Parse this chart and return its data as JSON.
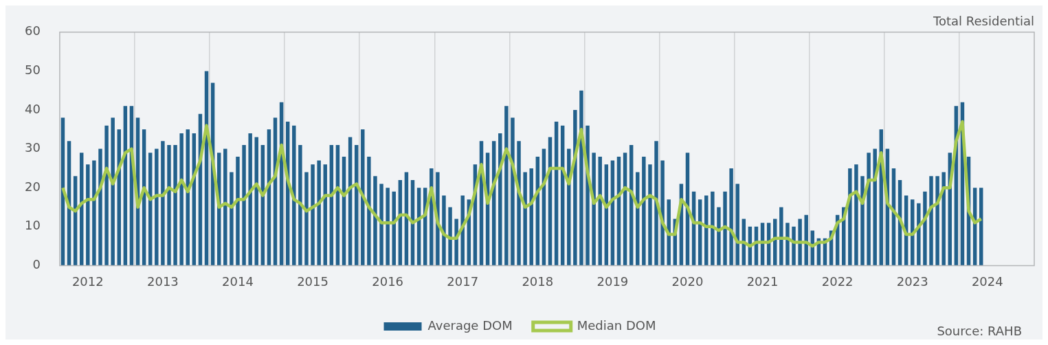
{
  "chart_data": {
    "type": "bar",
    "title": "Total Residential",
    "categories": [
      null,
      null,
      null,
      null,
      "2012",
      null,
      null,
      null,
      null,
      null,
      null,
      null,
      null,
      null,
      null,
      null,
      "2013",
      null,
      null,
      null,
      null,
      null,
      null,
      null,
      null,
      null,
      null,
      null,
      "2014",
      null,
      null,
      null,
      null,
      null,
      null,
      null,
      null,
      null,
      null,
      null,
      "2015",
      null,
      null,
      null,
      null,
      null,
      null,
      null,
      null,
      null,
      null,
      null,
      "2016",
      null,
      null,
      null,
      null,
      null,
      null,
      null,
      null,
      null,
      null,
      null,
      "2017",
      null,
      null,
      null,
      null,
      null,
      null,
      null,
      null,
      null,
      null,
      null,
      "2018",
      null,
      null,
      null,
      null,
      null,
      null,
      null,
      null,
      null,
      null,
      null,
      "2019",
      null,
      null,
      null,
      null,
      null,
      null,
      null,
      null,
      null,
      null,
      null,
      "2020",
      null,
      null,
      null,
      null,
      null,
      null,
      null,
      null,
      null,
      null,
      null,
      "2021",
      null,
      null,
      null,
      null,
      null,
      null,
      null,
      null,
      null,
      null,
      null,
      "2022",
      null,
      null,
      null,
      null,
      null,
      null,
      null,
      null,
      null,
      null,
      null,
      "2023",
      null,
      null,
      null,
      null,
      null,
      null,
      null,
      null,
      null,
      null,
      null,
      "2024",
      null,
      null,
      null,
      null,
      null,
      null,
      null
    ],
    "series": [
      {
        "name": "Average DOM",
        "color": "#23618c",
        "values": [
          38,
          32,
          23,
          29,
          26,
          27,
          30,
          36,
          38,
          35,
          41,
          41,
          38,
          35,
          29,
          30,
          32,
          31,
          31,
          34,
          35,
          34,
          39,
          50,
          47,
          29,
          30,
          24,
          28,
          31,
          34,
          33,
          31,
          35,
          38,
          42,
          37,
          36,
          31,
          24,
          26,
          27,
          26,
          31,
          31,
          28,
          33,
          31,
          35,
          28,
          23,
          21,
          20,
          19,
          22,
          24,
          22,
          20,
          20,
          25,
          24,
          18,
          15,
          12,
          18,
          17,
          26,
          32,
          29,
          32,
          34,
          41,
          38,
          32,
          24,
          25,
          28,
          30,
          33,
          37,
          36,
          30,
          40,
          45,
          36,
          29,
          28,
          26,
          27,
          28,
          29,
          31,
          24,
          28,
          26,
          32,
          27,
          17,
          12,
          21,
          29,
          19,
          17,
          18,
          19,
          15,
          19,
          25,
          21,
          12,
          10,
          10,
          11,
          11,
          12,
          15,
          11,
          10,
          12,
          13,
          9,
          7,
          7,
          9,
          13,
          15,
          25,
          26,
          23,
          29,
          30,
          35,
          30,
          25,
          22,
          18,
          17,
          16,
          19,
          23,
          23,
          24,
          29,
          41,
          42,
          28,
          20,
          20,
          null,
          null,
          null,
          null,
          null,
          null,
          null,
          null
        ]
      },
      {
        "name": "Median DOM",
        "type": "line",
        "color": "#a6c94f",
        "values": [
          20,
          15,
          14,
          16,
          17,
          17,
          20,
          25,
          21,
          25,
          29,
          30,
          15,
          20,
          17,
          18,
          18,
          20,
          19,
          22,
          19,
          23,
          27,
          36,
          27,
          15,
          16,
          15,
          17,
          17,
          19,
          21,
          18,
          21,
          23,
          31,
          22,
          17,
          16,
          14,
          15,
          16,
          18,
          18,
          20,
          18,
          20,
          21,
          18,
          15,
          13,
          11,
          11,
          11,
          13,
          13,
          11,
          12,
          13,
          20,
          11,
          8,
          7,
          7,
          10,
          13,
          19,
          26,
          16,
          21,
          25,
          30,
          26,
          19,
          15,
          16,
          19,
          21,
          25,
          25,
          25,
          21,
          28,
          35,
          24,
          16,
          18,
          15,
          17,
          18,
          20,
          19,
          15,
          17,
          18,
          17,
          11,
          8,
          8,
          17,
          15,
          11,
          11,
          10,
          10,
          9,
          10,
          9,
          6,
          6,
          5,
          6,
          6,
          6,
          7,
          7,
          7,
          6,
          6,
          6,
          5,
          6,
          6,
          7,
          11,
          12,
          18,
          19,
          16,
          22,
          22,
          29,
          16,
          14,
          12,
          8,
          8,
          10,
          12,
          15,
          16,
          20,
          20,
          32,
          37,
          14,
          11,
          12,
          null,
          null,
          null,
          null,
          null,
          null,
          null,
          null
        ]
      }
    ],
    "ylim": [
      0,
      60
    ],
    "yticks": [
      0,
      10,
      20,
      30,
      40,
      50,
      60
    ],
    "grid": "x",
    "legend": "bottom",
    "annotations": [
      "Source: RAHB"
    ]
  }
}
